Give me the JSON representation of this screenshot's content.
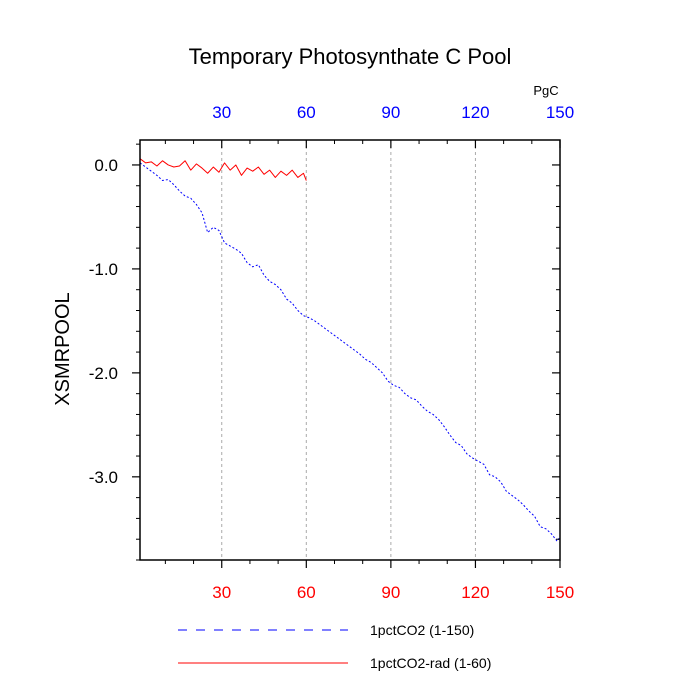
{
  "chart_data": {
    "type": "line",
    "title": "Temporary Photosynthate C Pool",
    "ylabel": "XSMRPOOL",
    "top_axis_unit": "PgC",
    "xlim": [
      1,
      150
    ],
    "ylim": [
      -3.8,
      0.24
    ],
    "x_ticks": [
      30,
      60,
      90,
      120,
      150
    ],
    "x_tick_labels": [
      "30",
      "60",
      "90",
      "120",
      "150"
    ],
    "y_ticks": [
      0,
      -1,
      -2,
      -3
    ],
    "y_tick_labels": [
      "0.0",
      "-1.0",
      "-2.0",
      "-3.0"
    ],
    "grid": "vertical dashed at x ticks",
    "legend_position": "bottom",
    "colors": {
      "series_blue": "#0000ff",
      "series_red": "#ff0000",
      "top_axis_labels": "#0000ff",
      "bottom_axis_labels": "#ff0000",
      "grid": "#aaaaaa",
      "axis": "#000000"
    },
    "series": [
      {
        "name": "1pctCO2 (1-150)",
        "color": "#0000ff",
        "style": "dashed",
        "x": [
          1,
          3,
          5,
          7,
          9,
          11,
          13,
          15,
          17,
          19,
          21,
          23,
          25,
          27,
          29,
          31,
          33,
          35,
          37,
          39,
          41,
          43,
          45,
          47,
          49,
          51,
          53,
          55,
          57,
          59,
          61,
          63,
          65,
          67,
          69,
          71,
          73,
          75,
          77,
          79,
          81,
          83,
          85,
          87,
          89,
          91,
          93,
          95,
          97,
          99,
          101,
          103,
          105,
          107,
          109,
          111,
          113,
          115,
          117,
          119,
          121,
          123,
          125,
          127,
          129,
          131,
          133,
          135,
          137,
          139,
          141,
          143,
          145,
          147,
          149,
          150
        ],
        "y": [
          0.02,
          -0.02,
          -0.06,
          -0.1,
          -0.15,
          -0.14,
          -0.19,
          -0.25,
          -0.3,
          -0.32,
          -0.38,
          -0.46,
          -0.65,
          -0.6,
          -0.63,
          -0.75,
          -0.78,
          -0.81,
          -0.85,
          -0.94,
          -0.98,
          -0.96,
          -1.06,
          -1.12,
          -1.15,
          -1.2,
          -1.29,
          -1.33,
          -1.4,
          -1.45,
          -1.47,
          -1.5,
          -1.54,
          -1.58,
          -1.62,
          -1.66,
          -1.7,
          -1.74,
          -1.78,
          -1.82,
          -1.87,
          -1.9,
          -1.95,
          -2.0,
          -2.08,
          -2.12,
          -2.14,
          -2.2,
          -2.24,
          -2.26,
          -2.32,
          -2.37,
          -2.4,
          -2.45,
          -2.52,
          -2.6,
          -2.67,
          -2.7,
          -2.78,
          -2.82,
          -2.85,
          -2.88,
          -2.98,
          -3.0,
          -3.05,
          -3.14,
          -3.18,
          -3.22,
          -3.27,
          -3.33,
          -3.38,
          -3.48,
          -3.5,
          -3.55,
          -3.62,
          -3.58
        ]
      },
      {
        "name": "1pctCO2-rad (1-60)",
        "color": "#ff0000",
        "style": "solid",
        "x": [
          1,
          3,
          5,
          7,
          9,
          11,
          13,
          15,
          17,
          19,
          21,
          23,
          25,
          27,
          29,
          31,
          33,
          35,
          37,
          39,
          41,
          43,
          45,
          47,
          49,
          51,
          53,
          55,
          57,
          59,
          60
        ],
        "y": [
          0.06,
          0.02,
          0.03,
          -0.01,
          0.04,
          0.0,
          -0.02,
          -0.01,
          0.04,
          -0.05,
          0.01,
          -0.03,
          -0.08,
          -0.02,
          -0.07,
          0.02,
          -0.05,
          0.0,
          -0.1,
          -0.03,
          -0.06,
          -0.02,
          -0.09,
          -0.05,
          -0.12,
          -0.06,
          -0.1,
          -0.05,
          -0.12,
          -0.08,
          -0.15
        ]
      }
    ]
  }
}
